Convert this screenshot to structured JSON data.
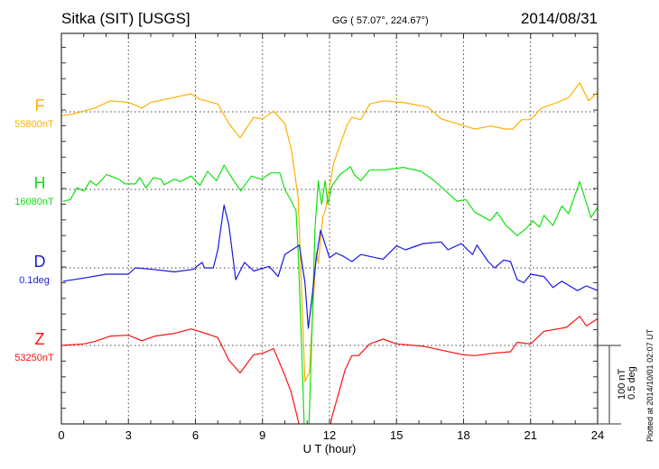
{
  "header": {
    "station": "Sitka (SIT)  [USGS]",
    "coords": "GG ( 57.07°, 224.67°)",
    "date": "2014/08/31"
  },
  "scale": {
    "line1": "100 nT",
    "line2": "0.5 deg"
  },
  "plotted": "Plotted at 2014/10/01 02:07 UT",
  "chart_data": {
    "type": "line",
    "title": "Sitka (SIT)  [USGS]",
    "xlabel": "U T (hour)",
    "xlim": [
      0,
      24
    ],
    "xticks": [
      "0",
      "3",
      "6",
      "9",
      "12",
      "15",
      "18",
      "21",
      "24"
    ],
    "grid": true,
    "scale_bar": "100 nT / 0.5 deg",
    "series": [
      {
        "name": "F",
        "baseline_label": "55800nT",
        "color": "#ffb000",
        "points": [
          [
            0,
            -5
          ],
          [
            0.5,
            -3
          ],
          [
            1,
            1
          ],
          [
            1.5,
            5
          ],
          [
            2.2,
            14
          ],
          [
            3,
            12
          ],
          [
            3.6,
            5
          ],
          [
            4,
            12
          ],
          [
            5,
            18
          ],
          [
            5.8,
            23
          ],
          [
            6.2,
            16
          ],
          [
            7,
            10
          ],
          [
            7.5,
            -15
          ],
          [
            8,
            -33
          ],
          [
            8.6,
            -7
          ],
          [
            9,
            -9
          ],
          [
            9.5,
            1
          ],
          [
            10,
            -15
          ],
          [
            10.3,
            -49
          ],
          [
            10.6,
            -110
          ],
          [
            10.9,
            -344
          ],
          [
            11.1,
            -332
          ],
          [
            11.4,
            -179
          ],
          [
            11.5,
            -193
          ],
          [
            11.7,
            -133
          ],
          [
            11.8,
            -127
          ],
          [
            12.2,
            -64
          ],
          [
            12.8,
            -16
          ],
          [
            13,
            -7
          ],
          [
            13.4,
            -10
          ],
          [
            13.8,
            10
          ],
          [
            14.4,
            14
          ],
          [
            15.3,
            12
          ],
          [
            16.4,
            6
          ],
          [
            17,
            -9
          ],
          [
            17.7,
            -15
          ],
          [
            18.5,
            -22
          ],
          [
            19.2,
            -18
          ],
          [
            19.9,
            -22
          ],
          [
            20.2,
            -22
          ],
          [
            20.6,
            -10
          ],
          [
            21,
            -10
          ],
          [
            21.5,
            5
          ],
          [
            22.2,
            12
          ],
          [
            22.7,
            18
          ],
          [
            23.2,
            37
          ],
          [
            23.6,
            14
          ],
          [
            24,
            25
          ]
        ]
      },
      {
        "name": "H",
        "baseline_label": "16080nT",
        "color": "#10e010",
        "points": [
          [
            0.08,
            -15
          ],
          [
            0.4,
            -13
          ],
          [
            0.69,
            2
          ],
          [
            1.02,
            -2
          ],
          [
            1.29,
            11
          ],
          [
            1.56,
            5
          ],
          [
            2.03,
            19
          ],
          [
            2.57,
            13
          ],
          [
            2.84,
            7
          ],
          [
            3.31,
            7
          ],
          [
            3.51,
            15
          ],
          [
            3.78,
            2
          ],
          [
            4.12,
            15
          ],
          [
            4.46,
            13
          ],
          [
            4.6,
            6
          ],
          [
            5.06,
            13
          ],
          [
            5.33,
            10
          ],
          [
            5.8,
            17
          ],
          [
            6.2,
            5
          ],
          [
            6.54,
            23
          ],
          [
            6.95,
            11
          ],
          [
            7.28,
            31
          ],
          [
            7.62,
            15
          ],
          [
            8.03,
            -2
          ],
          [
            8.5,
            17
          ],
          [
            8.97,
            13
          ],
          [
            9.37,
            21
          ],
          [
            9.78,
            21
          ],
          [
            10,
            0
          ],
          [
            10.3,
            -15
          ],
          [
            10.5,
            -27
          ],
          [
            10.6,
            -80
          ],
          [
            10.75,
            -200
          ],
          [
            10.9,
            -330
          ],
          [
            11.05,
            -330
          ],
          [
            11.2,
            -195
          ],
          [
            11.35,
            -50
          ],
          [
            11.5,
            11
          ],
          [
            11.65,
            -19
          ],
          [
            11.8,
            11
          ],
          [
            11.93,
            -19
          ],
          [
            12.1,
            4
          ],
          [
            12.47,
            19
          ],
          [
            12.94,
            29
          ],
          [
            13.1,
            19
          ],
          [
            13.4,
            11
          ],
          [
            13.8,
            25
          ],
          [
            14.5,
            25
          ],
          [
            15.3,
            28
          ],
          [
            16.1,
            23
          ],
          [
            16.6,
            13
          ],
          [
            17.2,
            -2
          ],
          [
            17.7,
            -15
          ],
          [
            18.1,
            -13
          ],
          [
            18.5,
            -29
          ],
          [
            19.2,
            -40
          ],
          [
            19.5,
            -29
          ],
          [
            19.9,
            -46
          ],
          [
            20.4,
            -59
          ],
          [
            20.8,
            -50
          ],
          [
            21.1,
            -40
          ],
          [
            21.4,
            -48
          ],
          [
            21.6,
            -33
          ],
          [
            22,
            -46
          ],
          [
            22.4,
            -21
          ],
          [
            22.7,
            -31
          ],
          [
            23.2,
            10
          ],
          [
            23.7,
            -36
          ],
          [
            24,
            -23
          ]
        ]
      },
      {
        "name": "D",
        "baseline_label": "0.1deg",
        "color": "#1818e8",
        "points": [
          [
            0.08,
            -17
          ],
          [
            1,
            -13
          ],
          [
            2,
            -8
          ],
          [
            3,
            -8
          ],
          [
            3.3,
            0
          ],
          [
            4.1,
            -2
          ],
          [
            5.06,
            -5
          ],
          [
            5.9,
            -2
          ],
          [
            6.3,
            7
          ],
          [
            6.4,
            0
          ],
          [
            6.8,
            0
          ],
          [
            7,
            23
          ],
          [
            7.28,
            80
          ],
          [
            7.5,
            54
          ],
          [
            7.8,
            -15
          ],
          [
            8.2,
            7
          ],
          [
            8.6,
            -4
          ],
          [
            9.3,
            2
          ],
          [
            9.7,
            -11
          ],
          [
            10,
            17
          ],
          [
            10.65,
            29
          ],
          [
            10.9,
            -19
          ],
          [
            11.05,
            -77
          ],
          [
            11.2,
            -42
          ],
          [
            11.4,
            11
          ],
          [
            11.6,
            48
          ],
          [
            12,
            13
          ],
          [
            12.3,
            19
          ],
          [
            12.6,
            15
          ],
          [
            13,
            8
          ],
          [
            13.4,
            17
          ],
          [
            14.4,
            11
          ],
          [
            15,
            28
          ],
          [
            15.4,
            23
          ],
          [
            16.2,
            31
          ],
          [
            17,
            33
          ],
          [
            17.3,
            23
          ],
          [
            17.9,
            31
          ],
          [
            18.4,
            17
          ],
          [
            18.6,
            29
          ],
          [
            19.1,
            8
          ],
          [
            19.4,
            0
          ],
          [
            19.8,
            10
          ],
          [
            20.1,
            8
          ],
          [
            20.4,
            -15
          ],
          [
            20.7,
            -19
          ],
          [
            21,
            -8
          ],
          [
            21.6,
            -11
          ],
          [
            22,
            -25
          ],
          [
            22.4,
            -17
          ],
          [
            23.1,
            -29
          ],
          [
            23.5,
            -23
          ],
          [
            24,
            -29
          ]
        ]
      },
      {
        "name": "Z",
        "baseline_label": "53250nT",
        "color": "#ff1010",
        "points": [
          [
            0,
            0
          ],
          [
            1,
            2
          ],
          [
            1.5,
            5
          ],
          [
            2.2,
            12
          ],
          [
            3,
            13
          ],
          [
            3.6,
            6
          ],
          [
            4.2,
            12
          ],
          [
            5,
            15
          ],
          [
            5.8,
            21
          ],
          [
            6.5,
            15
          ],
          [
            7,
            10
          ],
          [
            7.5,
            -19
          ],
          [
            8,
            -35
          ],
          [
            8.6,
            -12
          ],
          [
            9,
            -10
          ],
          [
            9.5,
            -4
          ],
          [
            10,
            -38
          ],
          [
            10.3,
            -61
          ],
          [
            10.6,
            -96
          ],
          [
            10.7,
            -110
          ],
          [
            12.0,
            -110
          ],
          [
            12.1,
            -92
          ],
          [
            12.4,
            -62
          ],
          [
            12.7,
            -31
          ],
          [
            13,
            -13
          ],
          [
            13.3,
            -13
          ],
          [
            13.8,
            2
          ],
          [
            14.4,
            8
          ],
          [
            15,
            2
          ],
          [
            16.2,
            -1
          ],
          [
            17,
            -6
          ],
          [
            18,
            -12
          ],
          [
            18.5,
            -13
          ],
          [
            19.3,
            -10
          ],
          [
            20.1,
            -8
          ],
          [
            20.4,
            4
          ],
          [
            21,
            2
          ],
          [
            21.6,
            18
          ],
          [
            22.6,
            23
          ],
          [
            23.2,
            37
          ],
          [
            23.5,
            25
          ],
          [
            24,
            34
          ]
        ]
      }
    ]
  }
}
